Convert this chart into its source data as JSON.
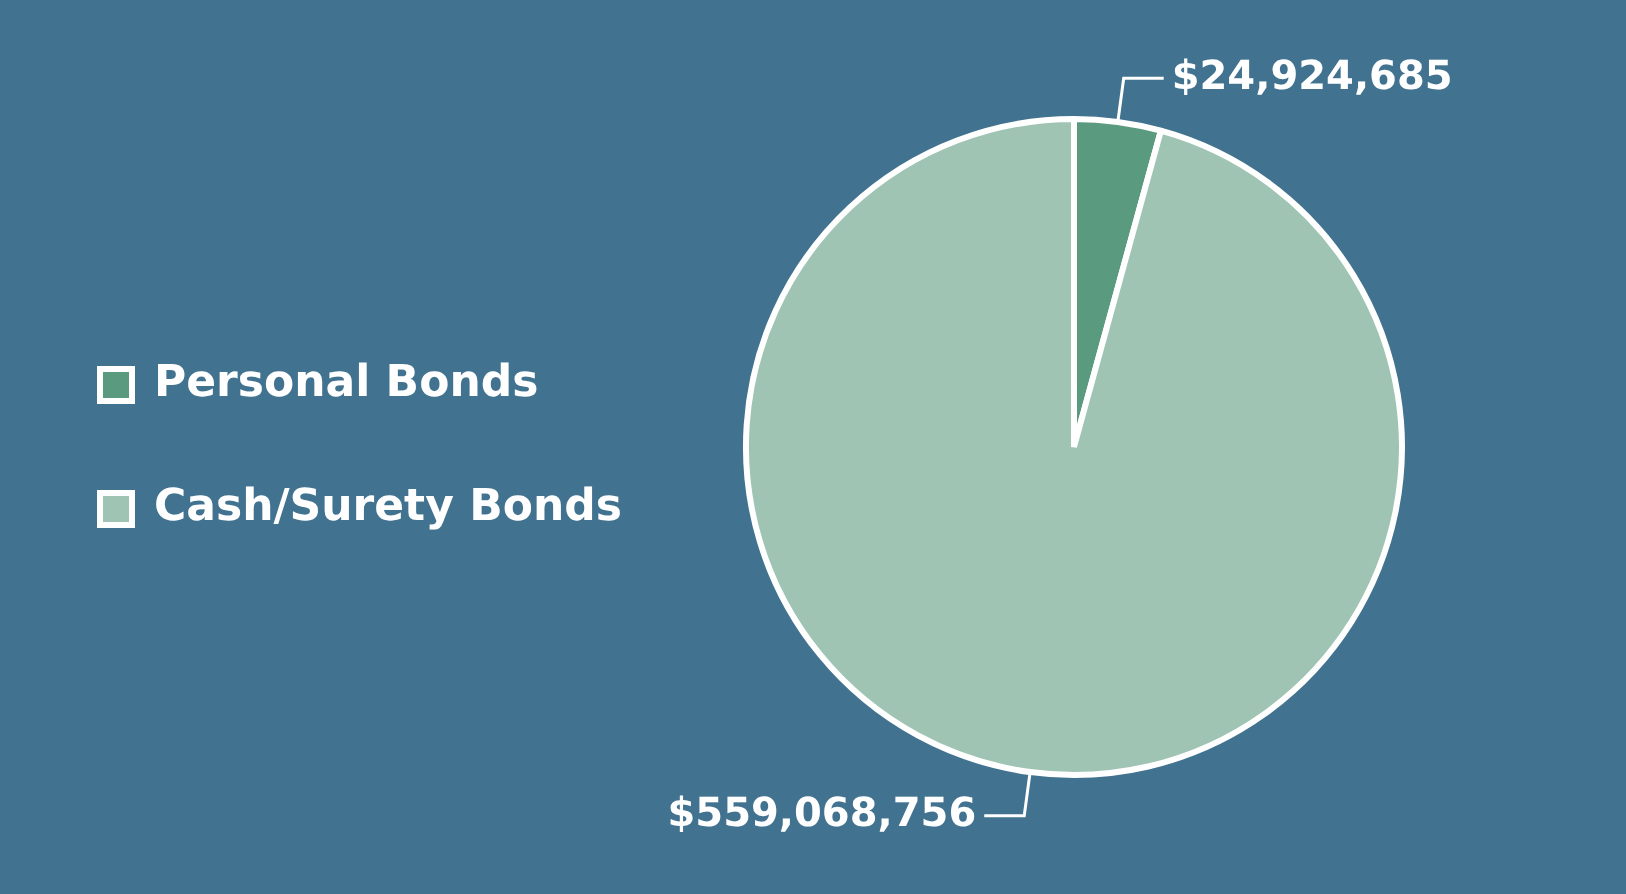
{
  "chart_data": {
    "type": "pie",
    "categories": [
      "Personal Bonds",
      "Cash/Surety Bonds"
    ],
    "values": [
      24924685,
      559068756
    ],
    "colors": [
      "#5a9a7e",
      "#9fc4b3"
    ],
    "value_labels": [
      "$24,924,685",
      "$559,068,756"
    ],
    "legend": "left"
  }
}
